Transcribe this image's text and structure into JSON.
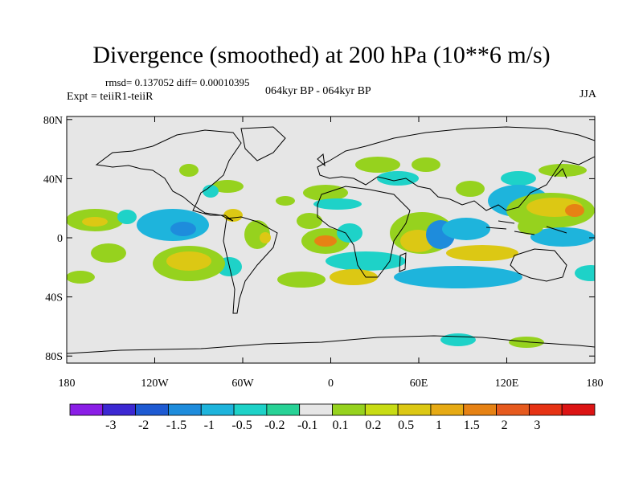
{
  "title": "Divergence (smoothed) at 200 hPa (10**6 m/s)",
  "stats": "rmsd= 0.137052 diff= 0.00010395",
  "expt": "Expt = teiiR1-teiiR",
  "period": "064kyr BP - 064kyr BP",
  "season": "JJA",
  "lat_ticks": [
    {
      "lat": 80,
      "label": "80N"
    },
    {
      "lat": 40,
      "label": "40N"
    },
    {
      "lat": 0,
      "label": "0"
    },
    {
      "lat": -40,
      "label": "40S"
    },
    {
      "lat": -80,
      "label": "80S"
    }
  ],
  "lon_ticks": [
    {
      "lon": -180,
      "label": "180"
    },
    {
      "lon": -120,
      "label": "120W"
    },
    {
      "lon": -60,
      "label": "60W"
    },
    {
      "lon": 0,
      "label": "0"
    },
    {
      "lon": 60,
      "label": "60E"
    },
    {
      "lon": 120,
      "label": "120E"
    },
    {
      "lon": 180,
      "label": "180"
    }
  ],
  "colorbar": {
    "colors": [
      "#8a1ee6",
      "#3c28d2",
      "#1e5ad2",
      "#1e8cdc",
      "#1eb4dc",
      "#1ed2c8",
      "#28d296",
      "#e6e6e6",
      "#96d21e",
      "#c8dc14",
      "#dcc814",
      "#e6aa14",
      "#e68214",
      "#e65a1e",
      "#e63214",
      "#dc1414"
    ],
    "labels": [
      "-3",
      "-2",
      "-1.5",
      "-1",
      "-0.5",
      "-0.2",
      "-0.1",
      "0.1",
      "0.2",
      "0.5",
      "1",
      "1.5",
      "2",
      "3"
    ]
  },
  "map_background": "#e6e6e6"
}
